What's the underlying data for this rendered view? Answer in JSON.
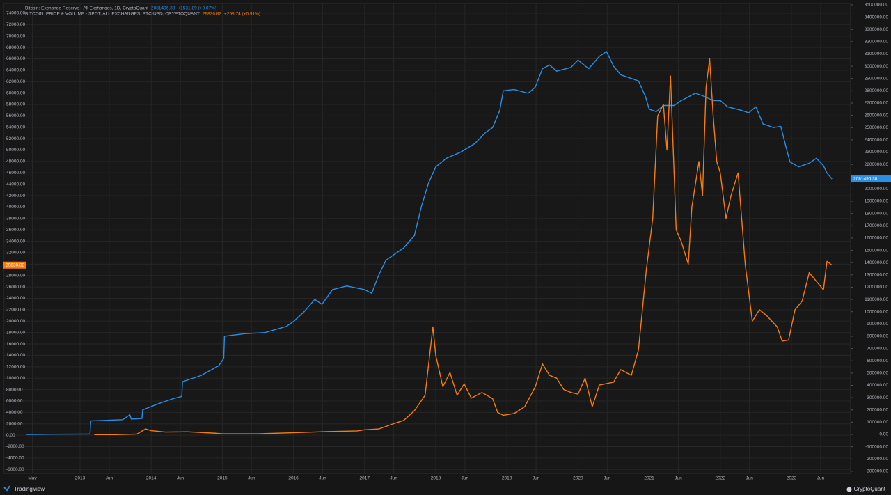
{
  "chart_data": {
    "type": "line",
    "series": [
      {
        "name": "Bitcoin: Exchange Reserve - All Exchanges, 1D, CryptoQuant",
        "change": "+1531.89 (+0.07%)",
        "color": "#2b8ee3",
        "axis": "y2",
        "x": [
          2012.25,
          2012.6,
          2013.14,
          2013.15,
          2013.6,
          2013.7,
          2013.72,
          2013.87,
          2013.88,
          2014.1,
          2014.3,
          2014.43,
          2014.44,
          2014.7,
          2014.95,
          2015.02,
          2015.03,
          2015.3,
          2015.6,
          2015.9,
          2016.0,
          2016.15,
          2016.3,
          2016.4,
          2016.55,
          2016.75,
          2017.0,
          2017.1,
          2017.2,
          2017.3,
          2017.45,
          2017.55,
          2017.7,
          2017.8,
          2017.9,
          2018.0,
          2018.15,
          2018.35,
          2018.55,
          2018.7,
          2018.8,
          2018.9,
          2018.95,
          2019.1,
          2019.3,
          2019.4,
          2019.5,
          2019.6,
          2019.7,
          2019.9,
          2020.0,
          2020.15,
          2020.3,
          2020.4,
          2020.5,
          2020.6,
          2020.75,
          2020.85,
          2020.95,
          2021.0,
          2021.1,
          2021.2,
          2021.35,
          2021.45,
          2021.55,
          2021.65,
          2021.75,
          2021.9,
          2022.0,
          2022.1,
          2022.3,
          2022.4,
          2022.5,
          2022.6,
          2022.75,
          2022.85,
          2022.92,
          2022.98,
          2023.1,
          2023.25,
          2023.35,
          2023.45,
          2023.5,
          2023.57
        ],
        "values": [
          0,
          2000,
          3000,
          110000,
          120000,
          160000,
          125000,
          130000,
          200000,
          250000,
          290000,
          310000,
          430000,
          480000,
          560000,
          620000,
          800000,
          820000,
          830000,
          880000,
          920000,
          1000000,
          1100000,
          1060000,
          1180000,
          1210000,
          1180000,
          1150000,
          1300000,
          1420000,
          1480000,
          1520000,
          1620000,
          1860000,
          2050000,
          2180000,
          2250000,
          2300000,
          2370000,
          2460000,
          2500000,
          2640000,
          2800000,
          2810000,
          2780000,
          2830000,
          2980000,
          3010000,
          2960000,
          2990000,
          3050000,
          2980000,
          3080000,
          3120000,
          3000000,
          2930000,
          2900000,
          2880000,
          2750000,
          2650000,
          2630000,
          2680000,
          2680000,
          2720000,
          2750000,
          2780000,
          2760000,
          2720000,
          2720000,
          2670000,
          2640000,
          2620000,
          2670000,
          2530000,
          2500000,
          2510000,
          2350000,
          2220000,
          2180000,
          2210000,
          2250000,
          2190000,
          2130000,
          2081496.38
        ]
      },
      {
        "name": "BITCOIN: PRICE & VOLUME - SPOT, ALL EXCHANGES, BTC-USD, CRYPTOQUANT",
        "change": "+268.74 (+0.91%)",
        "color": "#f57d0f",
        "axis": "y",
        "x": [
          2013.2,
          2013.5,
          2013.8,
          2013.92,
          2014.0,
          2014.2,
          2014.5,
          2014.9,
          2015.0,
          2015.5,
          2015.9,
          2016.0,
          2016.5,
          2016.9,
          2017.0,
          2017.2,
          2017.4,
          2017.55,
          2017.7,
          2017.85,
          2017.96,
          2018.0,
          2018.1,
          2018.2,
          2018.3,
          2018.4,
          2018.5,
          2018.65,
          2018.8,
          2018.87,
          2018.95,
          2019.1,
          2019.25,
          2019.4,
          2019.5,
          2019.6,
          2019.7,
          2019.8,
          2019.9,
          2020.0,
          2020.1,
          2020.2,
          2020.3,
          2020.5,
          2020.6,
          2020.75,
          2020.85,
          2020.96,
          2021.05,
          2021.12,
          2021.2,
          2021.25,
          2021.3,
          2021.38,
          2021.45,
          2021.55,
          2021.6,
          2021.7,
          2021.75,
          2021.8,
          2021.85,
          2021.9,
          2021.95,
          2022.0,
          2022.08,
          2022.15,
          2022.25,
          2022.35,
          2022.45,
          2022.55,
          2022.65,
          2022.8,
          2022.87,
          2022.96,
          2023.05,
          2023.15,
          2023.25,
          2023.35,
          2023.45,
          2023.5,
          2023.57
        ],
        "values": [
          100,
          100,
          200,
          1100,
          800,
          550,
          600,
          350,
          250,
          250,
          400,
          430,
          650,
          750,
          950,
          1100,
          2000,
          2600,
          4300,
          7000,
          19000,
          14000,
          8500,
          11000,
          7000,
          9000,
          6500,
          7500,
          6400,
          4000,
          3500,
          3800,
          5000,
          8500,
          12500,
          10500,
          10000,
          8000,
          7500,
          7200,
          10000,
          5000,
          8800,
          9300,
          11500,
          10500,
          15000,
          29000,
          38000,
          56000,
          58000,
          50000,
          63000,
          36000,
          34000,
          30000,
          40000,
          48000,
          42000,
          61000,
          66000,
          56000,
          48000,
          46000,
          38000,
          42000,
          46000,
          30000,
          20000,
          22000,
          21000,
          19000,
          16500,
          16700,
          22000,
          23500,
          28500,
          27000,
          25500,
          30500,
          29830.82
        ]
      }
    ],
    "xlim": [
      2011.924,
      2023.832
    ],
    "xticks": [
      {
        "value": 2012.33,
        "label": "May"
      },
      2013,
      {
        "value": 2013.41,
        "label": "Jun"
      },
      2014,
      {
        "value": 2014.41,
        "label": "Jun"
      },
      2015,
      {
        "value": 2015.41,
        "label": "Jun"
      },
      2016,
      {
        "value": 2016.41,
        "label": "Jun"
      },
      2017,
      {
        "value": 2017.41,
        "label": "Jun"
      },
      2018,
      {
        "value": 2018.41,
        "label": "Jun"
      },
      2019,
      {
        "value": 2019.41,
        "label": "Jun"
      },
      2020,
      {
        "value": 2020.41,
        "label": "Jun"
      },
      2021,
      {
        "value": 2021.41,
        "label": "Jun"
      },
      2022,
      {
        "value": 2022.41,
        "label": "Jun"
      },
      2023,
      {
        "value": 2023.41,
        "label": "Jun"
      }
    ],
    "ylim": [
      -6700,
      75700
    ],
    "yticks": [
      {
        "value": 74000,
        "label": "74000.00"
      },
      {
        "value": 72000,
        "label": "72000.00"
      },
      {
        "value": 70000,
        "label": "70000.00"
      },
      {
        "value": 68000,
        "label": "68000.00"
      },
      {
        "value": 66000,
        "label": "66000.00"
      },
      {
        "value": 64000,
        "label": "64000.00"
      },
      {
        "value": 62000,
        "label": "62000.00"
      },
      {
        "value": 60000,
        "label": "60000.00"
      },
      {
        "value": 58000,
        "label": "58000.00"
      },
      {
        "value": 56000,
        "label": "56000.00"
      },
      {
        "value": 54000,
        "label": "54000.00"
      },
      {
        "value": 52000,
        "label": "52000.00"
      },
      {
        "value": 50000,
        "label": "50000.00"
      },
      {
        "value": 48000,
        "label": "48000.00"
      },
      {
        "value": 46000,
        "label": "46000.00"
      },
      {
        "value": 44000,
        "label": "44000.00"
      },
      {
        "value": 42000,
        "label": "42000.00"
      },
      {
        "value": 40000,
        "label": "40000.00"
      },
      {
        "value": 38000,
        "label": "38000.00"
      },
      {
        "value": 36000,
        "label": "36000.00"
      },
      {
        "value": 34000,
        "label": "34000.00"
      },
      {
        "value": 32000,
        "label": "32000.00"
      },
      {
        "value": 30000,
        "label": "30000.00"
      },
      {
        "value": 28000,
        "label": "28000.00"
      },
      {
        "value": 26000,
        "label": "26000.00"
      },
      {
        "value": 24000,
        "label": "24000.00"
      },
      {
        "value": 22000,
        "label": "22000.00"
      },
      {
        "value": 20000,
        "label": "20000.00"
      },
      {
        "value": 18000,
        "label": "18000.00"
      },
      {
        "value": 16000,
        "label": "16000.00"
      },
      {
        "value": 14000,
        "label": "14000.00"
      },
      {
        "value": 12000,
        "label": "12000.00"
      },
      {
        "value": 10000,
        "label": "10000.00"
      },
      {
        "value": 8000,
        "label": "8000.00"
      },
      {
        "value": 6000,
        "label": "6000.00"
      },
      {
        "value": 4000,
        "label": "4000.00"
      },
      {
        "value": 2000,
        "label": "2000.00"
      },
      {
        "value": 0,
        "label": "0.00"
      },
      {
        "value": -2000,
        "label": "-2000.00"
      },
      {
        "value": -4000,
        "label": "-4000.00"
      },
      {
        "value": -6000,
        "label": "-6000.00"
      }
    ],
    "y2lim": [
      -317600,
      3511000
    ],
    "y2ticks": [
      {
        "value": 3500000,
        "label": "3500000.00"
      },
      {
        "value": 3400000,
        "label": "3400000.00"
      },
      {
        "value": 3300000,
        "label": "3300000.00"
      },
      {
        "value": 3200000,
        "label": "3200000.00"
      },
      {
        "value": 3100000,
        "label": "3100000.00"
      },
      {
        "value": 3000000,
        "label": "3000000.00"
      },
      {
        "value": 2900000,
        "label": "2900000.00"
      },
      {
        "value": 2800000,
        "label": "2800000.00"
      },
      {
        "value": 2700000,
        "label": "2700000.00"
      },
      {
        "value": 2600000,
        "label": "2600000.00"
      },
      {
        "value": 2500000,
        "label": "2500000.00"
      },
      {
        "value": 2400000,
        "label": "2400000.00"
      },
      {
        "value": 2300000,
        "label": "2300000.00"
      },
      {
        "value": 2200000,
        "label": "2200000.00"
      },
      {
        "value": 2100000,
        "label": "2100000.00"
      },
      {
        "value": 2000000,
        "label": "2000000.00"
      },
      {
        "value": 1900000,
        "label": "1900000.00"
      },
      {
        "value": 1800000,
        "label": "1800000.00"
      },
      {
        "value": 1700000,
        "label": "1700000.00"
      },
      {
        "value": 1600000,
        "label": "1600000.00"
      },
      {
        "value": 1500000,
        "label": "1500000.00"
      },
      {
        "value": 1400000,
        "label": "1400000.00"
      },
      {
        "value": 1300000,
        "label": "1300000.00"
      },
      {
        "value": 1200000,
        "label": "1200000.00"
      },
      {
        "value": 1100000,
        "label": "1100000.00"
      },
      {
        "value": 1000000,
        "label": "1000000.00"
      },
      {
        "value": 900000,
        "label": "900000.00"
      },
      {
        "value": 800000,
        "label": "800000.00"
      },
      {
        "value": 700000,
        "label": "700000.00"
      },
      {
        "value": 600000,
        "label": "600000.00"
      },
      {
        "value": 500000,
        "label": "500000.00"
      },
      {
        "value": 400000,
        "label": "400000.00"
      },
      {
        "value": 300000,
        "label": "300000.00"
      },
      {
        "value": 200000,
        "label": "200000.00"
      },
      {
        "value": 100000,
        "label": "100000.00"
      },
      {
        "value": 0,
        "label": "0.00"
      },
      {
        "value": -100000,
        "label": "-100000.00"
      },
      {
        "value": -200000,
        "label": "-200000.00"
      },
      {
        "value": -300000,
        "label": "-300000.00"
      }
    ],
    "grid": true,
    "footer_left": "TradingView",
    "footer_right": "CryptoQuant"
  }
}
